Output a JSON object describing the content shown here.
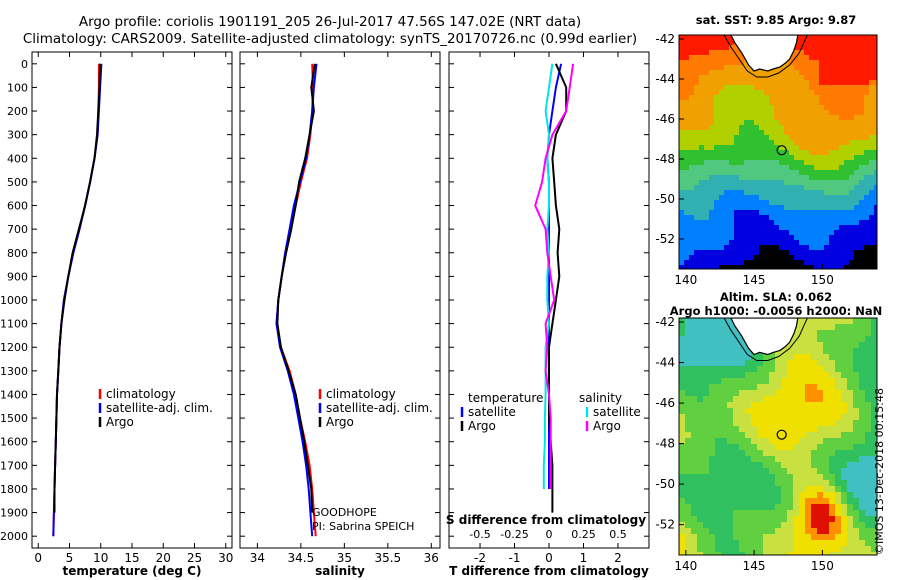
{
  "header": {
    "title_line1": "Argo profile: coriolis 1901191_205 26-Jul-2017 47.56S 147.02E (NRT data)",
    "title_line2": "Climatology: CARS2009. Satellite-adjusted climatology: synTS_20170726.nc (0.99d earlier)"
  },
  "stamp": "©IMOS 13-Dec-2018 00:15:48",
  "colors": {
    "climatology": "#ff0000",
    "satellite": "#0000ff",
    "argo": "#000000",
    "satellite_s": "#00e5e5",
    "argo_s": "#ff00ff"
  },
  "chart_data": [
    {
      "type": "line",
      "xlabel": "temperature (deg C)",
      "ylabel": "",
      "xlim": [
        -1,
        31
      ],
      "ylim": [
        2050,
        -50
      ],
      "xticks": [
        "0",
        "5",
        "10",
        "15",
        "20",
        "25",
        "30"
      ],
      "xtick_values": [
        0,
        5,
        10,
        15,
        20,
        25,
        30
      ],
      "yticks": [
        "0",
        "100",
        "200",
        "300",
        "400",
        "500",
        "600",
        "700",
        "800",
        "900",
        "1000",
        "1100",
        "1200",
        "1300",
        "1400",
        "1500",
        "1600",
        "1700",
        "1800",
        "1900",
        "2000"
      ],
      "ytick_values": [
        0,
        100,
        200,
        300,
        400,
        500,
        600,
        700,
        800,
        900,
        1000,
        1100,
        1200,
        1300,
        1400,
        1500,
        1600,
        1700,
        1800,
        1900,
        2000
      ],
      "legend": [
        "climatology",
        "satellite-adj. clim.",
        "Argo"
      ],
      "depth": [
        0,
        100,
        200,
        300,
        400,
        500,
        600,
        700,
        800,
        900,
        1000,
        1100,
        1200,
        1300,
        1400,
        1500,
        1600,
        1700,
        1800,
        1900,
        2000
      ],
      "series": [
        {
          "name": "climatology",
          "values": [
            9.7,
            9.7,
            9.6,
            9.5,
            9.0,
            8.3,
            7.5,
            6.6,
            5.6,
            4.8,
            4.1,
            3.7,
            3.4,
            3.2,
            3.0,
            2.9,
            2.8,
            2.7,
            2.6,
            2.5,
            2.4
          ]
        },
        {
          "name": "satellite-adj. clim.",
          "values": [
            10.1,
            9.9,
            9.7,
            9.5,
            9.0,
            8.3,
            7.5,
            6.6,
            5.6,
            4.8,
            4.1,
            3.7,
            3.4,
            3.2,
            3.0,
            2.9,
            2.8,
            2.7,
            2.6,
            2.5,
            2.4
          ]
        },
        {
          "name": "Argo",
          "values": [
            9.9,
            9.8,
            9.6,
            9.4,
            9.0,
            8.3,
            7.5,
            6.5,
            5.5,
            4.8,
            4.2,
            3.7,
            3.4,
            3.2,
            3.0,
            2.9,
            2.8,
            2.7,
            2.6,
            2.6,
            null
          ]
        }
      ]
    },
    {
      "type": "line",
      "xlabel": "salinity",
      "xlim": [
        33.8,
        36.1
      ],
      "ylim": [
        2050,
        -50
      ],
      "xticks": [
        "34",
        "34.5",
        "35",
        "35.5",
        "36"
      ],
      "xtick_values": [
        34,
        34.5,
        35,
        35.5,
        36
      ],
      "legend": [
        "climatology",
        "satellite-adj. clim.",
        "Argo"
      ],
      "annotation": [
        "GOODHOPE",
        "PI: Sabrina SPEICH"
      ],
      "depth": [
        0,
        100,
        200,
        300,
        400,
        500,
        600,
        700,
        800,
        900,
        1000,
        1100,
        1200,
        1300,
        1400,
        1500,
        1600,
        1700,
        1800,
        1900,
        2000
      ],
      "series": [
        {
          "name": "climatology",
          "values": [
            34.63,
            34.64,
            34.63,
            34.61,
            34.57,
            34.5,
            34.44,
            34.38,
            34.32,
            34.28,
            34.24,
            34.22,
            34.27,
            34.37,
            34.44,
            34.49,
            34.55,
            34.6,
            34.63,
            34.65,
            34.67
          ]
        },
        {
          "name": "satellite-adj. clim.",
          "values": [
            34.68,
            34.65,
            34.63,
            34.6,
            34.56,
            34.49,
            34.42,
            34.37,
            34.32,
            34.28,
            34.24,
            34.22,
            34.26,
            34.35,
            34.42,
            34.47,
            34.52,
            34.56,
            34.59,
            34.61,
            34.63
          ]
        },
        {
          "name": "Argo",
          "values": [
            34.66,
            34.62,
            34.65,
            34.6,
            34.55,
            34.48,
            34.44,
            34.39,
            34.33,
            34.28,
            34.24,
            34.23,
            34.27,
            34.36,
            34.44,
            34.49,
            34.54,
            34.58,
            34.62,
            34.63,
            null
          ]
        }
      ]
    },
    {
      "type": "line",
      "xlabel": "T difference from climatology",
      "xlabel_top": "S difference from climatology",
      "xlim": [
        -2.9,
        2.9
      ],
      "ylim": [
        2050,
        -50
      ],
      "xticks": [
        "-2",
        "-1",
        "0",
        "1",
        "2"
      ],
      "xtick_values": [
        -2,
        -1,
        0,
        1,
        2
      ],
      "xticks_top": [
        "-0.5",
        "-0.25",
        "0",
        "0.25",
        "0.5"
      ],
      "xtick_top_values": [
        -2,
        -1,
        0,
        1,
        2
      ],
      "legend_left_title": "temperature",
      "legend_right_title": "salinity",
      "legend_left": [
        "satellite",
        "Argo"
      ],
      "legend_right": [
        "satellite",
        "Argo"
      ],
      "depth": [
        0,
        100,
        200,
        300,
        400,
        500,
        600,
        700,
        800,
        900,
        1000,
        1100,
        1200,
        1300,
        1400,
        1500,
        1600,
        1700,
        1800,
        1900
      ],
      "series": [
        {
          "name": "temperature satellite",
          "values": [
            0.35,
            0.2,
            0.1,
            0.0,
            -0.05,
            0.0,
            0.0,
            0.0,
            0.0,
            0.0,
            0.0,
            0.0,
            0.0,
            0.0,
            0.0,
            0.0,
            0.0,
            0.0,
            0.0,
            null
          ]
        },
        {
          "name": "temperature Argo",
          "values": [
            0.2,
            0.5,
            0.5,
            0.2,
            0.1,
            0.15,
            0.2,
            0.3,
            0.25,
            0.3,
            0.2,
            0.1,
            0.0,
            0.0,
            0.0,
            0.0,
            0.05,
            0.1,
            0.1,
            0.1
          ]
        },
        {
          "name": "salinity satellite",
          "values": [
            0.1,
            0.0,
            -0.1,
            0.0,
            -0.05,
            0.0,
            0.0,
            -0.05,
            0.0,
            -0.05,
            -0.05,
            0.0,
            -0.1,
            -0.1,
            -0.1,
            -0.12,
            -0.12,
            -0.15,
            -0.15,
            null
          ]
        },
        {
          "name": "salinity Argo",
          "values": [
            0.7,
            0.6,
            0.5,
            0.1,
            -0.1,
            -0.2,
            -0.4,
            -0.1,
            -0.05,
            0.05,
            0.15,
            -0.1,
            -0.05,
            -0.1,
            0.0,
            0.05,
            0.05,
            0.05,
            0.05,
            null
          ]
        }
      ]
    },
    {
      "type": "heatmap",
      "title": "sat. SST: 9.85 Argo: 9.87",
      "xticks": [
        "140",
        "145",
        "150"
      ],
      "xtick_values": [
        140,
        145,
        150
      ],
      "yticks": [
        "-42",
        "-44",
        "-46",
        "-48",
        "-50",
        "-52"
      ],
      "ytick_values": [
        -42,
        -44,
        -46,
        -48,
        -50,
        -52
      ],
      "xlim": [
        139.5,
        154
      ],
      "ylim": [
        -41.8,
        -53.5
      ],
      "marker": {
        "lon": 147.02,
        "lat": -47.56
      }
    },
    {
      "type": "heatmap",
      "title": "Altim. SLA: 0.062",
      "subtitle": "Argo h1000: -0.0056 h2000: NaN",
      "xticks": [
        "140",
        "145",
        "150"
      ],
      "xtick_values": [
        140,
        145,
        150
      ],
      "yticks": [
        "-42",
        "-44",
        "-46",
        "-48",
        "-50",
        "-52"
      ],
      "ytick_values": [
        -42,
        -44,
        -46,
        -48,
        -50,
        -52
      ],
      "xlim": [
        139.5,
        154
      ],
      "ylim": [
        -41.8,
        -53.5
      ],
      "marker": {
        "lon": 147.02,
        "lat": -47.56
      }
    }
  ]
}
